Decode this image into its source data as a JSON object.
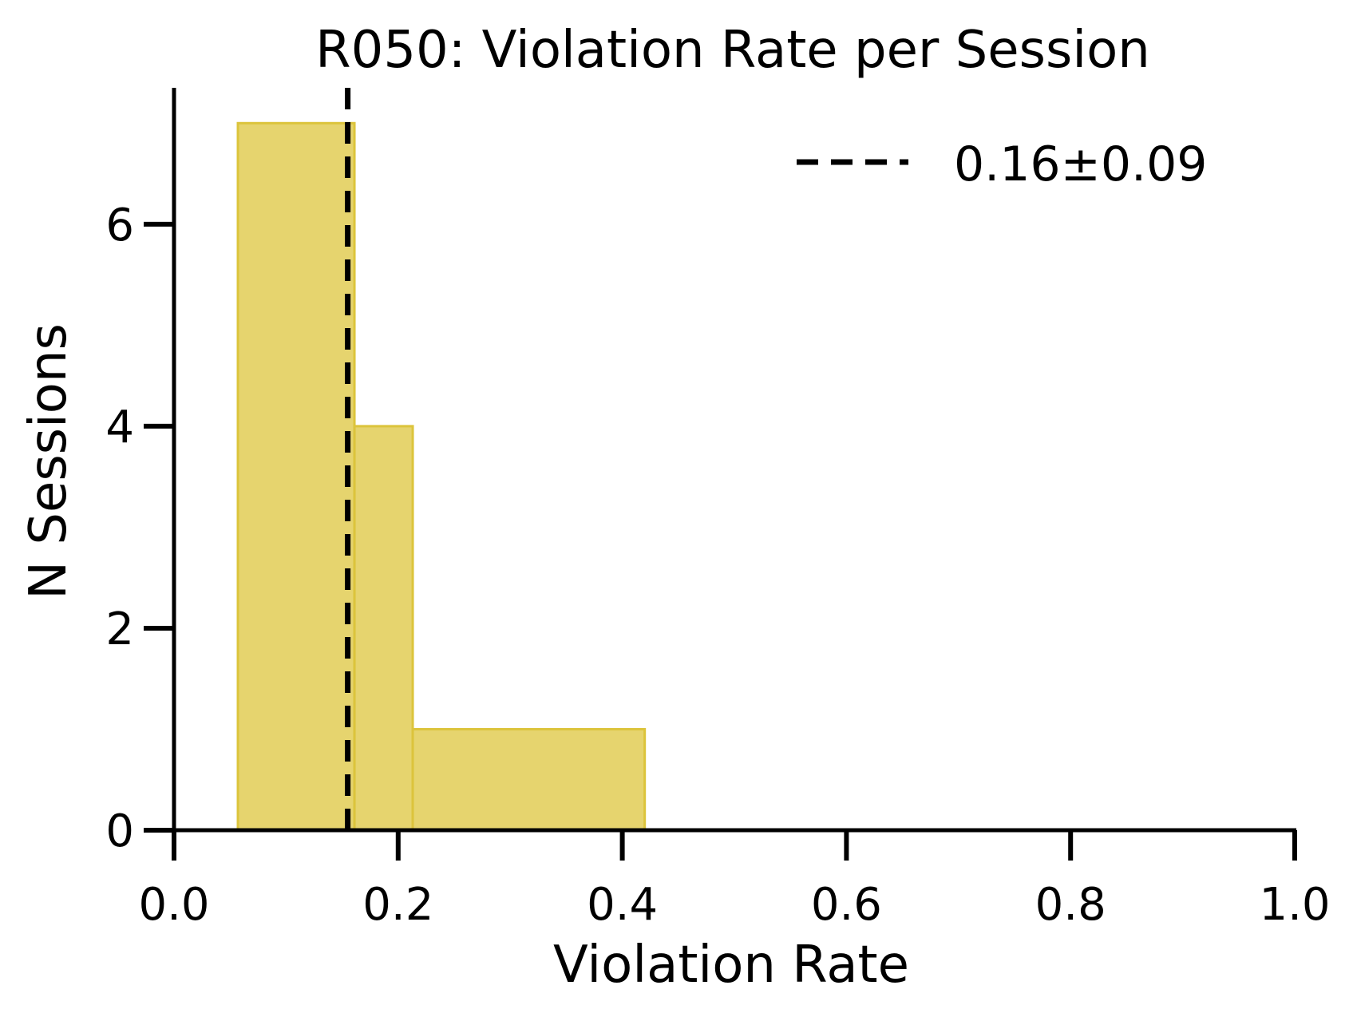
{
  "chart_data": {
    "type": "bar",
    "subtype": "histogram",
    "title": "R050: Violation Rate per Session",
    "xlabel": "Violation Rate",
    "ylabel": "N Sessions",
    "xlim": [
      0.0,
      1.0
    ],
    "ylim": [
      0,
      7.35
    ],
    "xticks": [
      0.0,
      0.2,
      0.4,
      0.6,
      0.8,
      1.0
    ],
    "xtick_labels": [
      "0.0",
      "0.2",
      "0.4",
      "0.6",
      "0.8",
      "1.0"
    ],
    "yticks": [
      0,
      2,
      4,
      6
    ],
    "ytick_labels": [
      "0",
      "2",
      "4",
      "6"
    ],
    "bins": [
      {
        "x0": 0.057,
        "x1": 0.161,
        "count": 7
      },
      {
        "x0": 0.161,
        "x1": 0.213,
        "count": 4
      },
      {
        "x0": 0.213,
        "x1": 0.42,
        "count": 1
      }
    ],
    "mean_line": {
      "x": 0.155,
      "label": "0.16±0.09"
    },
    "legend": {
      "position": "top-right",
      "entries": [
        "0.16±0.09"
      ]
    },
    "grid": false,
    "colors": {
      "bar_fill": "#e6d46e",
      "bar_edge": "#dcc43c",
      "mean_line": "#000000",
      "axes": "#000000"
    }
  }
}
